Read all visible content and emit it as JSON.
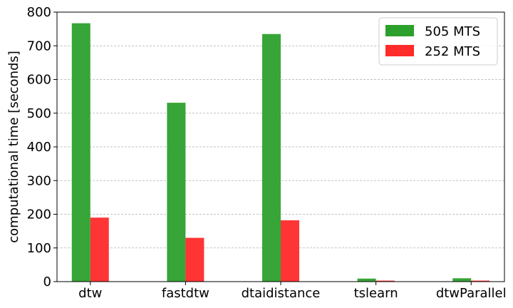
{
  "chart_data": {
    "type": "bar",
    "title": "",
    "xlabel": "",
    "ylabel": "computational time [seconds]",
    "categories": [
      "dtw",
      "fastdtw",
      "dtaidistance",
      "tslearn",
      "dtwParallel"
    ],
    "ylim": [
      0,
      800
    ],
    "yticks": [
      0,
      100,
      200,
      300,
      400,
      500,
      600,
      700,
      800
    ],
    "grid": "horizontal-dashed",
    "legend_position": "top-right",
    "series": [
      {
        "name": "505 MTS",
        "color": "#2ca02c",
        "values": [
          767,
          531,
          735,
          9,
          10
        ]
      },
      {
        "name": "252 MTS",
        "color": "#ff2a2a",
        "values": [
          190,
          130,
          182,
          3,
          3
        ]
      }
    ]
  }
}
